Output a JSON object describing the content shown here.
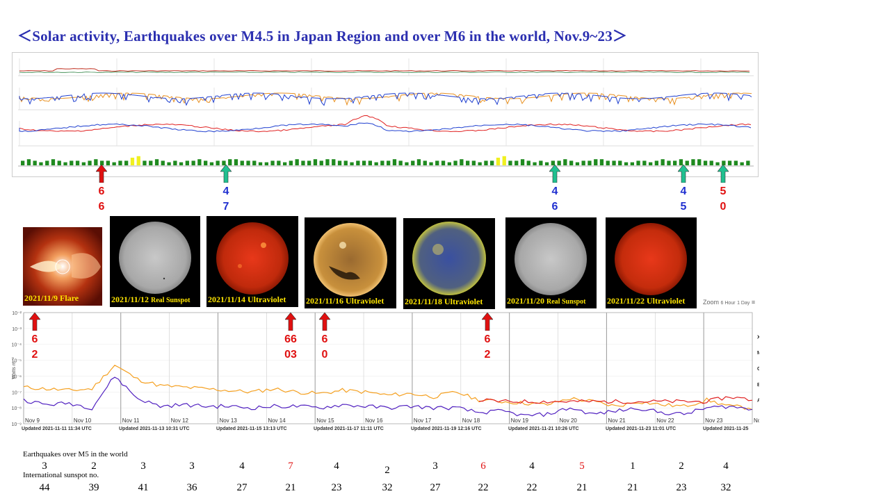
{
  "title": "＜Solar activity, Earthquakes over M4.5 in Japan Region and over M6 in the world,   Nov.9~23＞",
  "top_arrows": [
    {
      "x": 146,
      "color": "#e01010",
      "digits": [
        "6",
        "6"
      ],
      "label_color": "#e01010"
    },
    {
      "x": 325,
      "color": "#20c090",
      "digits": [
        "4",
        "7"
      ],
      "label_color": "#2030d0"
    },
    {
      "x": 798,
      "color": "#20c090",
      "digits": [
        "4",
        "6"
      ],
      "label_color": "#2030d0"
    },
    {
      "x": 983,
      "color": "#20c090",
      "digits": [
        "4",
        "5"
      ],
      "label_color": "#2030d0"
    },
    {
      "x": 1040,
      "color": "#20c090",
      "digits": [
        "5",
        "0"
      ],
      "label_color": "#e01010"
    }
  ],
  "tiles": [
    {
      "name": "flare",
      "caption": "2021/11/9 Flare",
      "small": ""
    },
    {
      "name": "sunspot-1112",
      "caption": "2021/11/12 ",
      "small": "Real Sunspot"
    },
    {
      "name": "uv-1114",
      "caption": "2021/11/14 Ultraviolet",
      "small": ""
    },
    {
      "name": "uv-1116",
      "caption": "2021/11/16 Ultraviolet",
      "small": ""
    },
    {
      "name": "uv-1118",
      "caption": "2021/11/18 Ultraviolet",
      "small": ""
    },
    {
      "name": "sunspot-1120",
      "caption": "2021/11/20 ",
      "small": "Real Sunspot"
    },
    {
      "name": "uv-1122",
      "caption": "2021/11/22 Ultraviolet",
      "small": ""
    }
  ],
  "xray_arrows": [
    {
      "x": 50,
      "digits": [
        "6",
        "2"
      ]
    },
    {
      "x": 418,
      "digits": [
        "66",
        "03"
      ]
    },
    {
      "x": 467,
      "digits": [
        "6",
        "0"
      ]
    },
    {
      "x": 701,
      "digits": [
        "6",
        "2"
      ]
    }
  ],
  "zoom": {
    "label": "Zoom",
    "opt1": "6 Hour",
    "opt2": "1 Day"
  },
  "chart_data": {
    "type": "line",
    "title": "",
    "ylabel": "Watts m⁻²",
    "ytick_labels": [
      "10⁻²",
      "10⁻³",
      "10⁻⁴",
      "10⁻⁵",
      "10⁻⁶",
      "10⁻⁷",
      "10⁻⁸",
      "10⁻⁹"
    ],
    "flare_classes": [
      "X",
      "M",
      "C",
      "B",
      "A"
    ],
    "x_labels": [
      "Nov 9",
      "Nov 10",
      "Nov 11",
      "Nov 12",
      "Nov 13",
      "Nov 14",
      "Nov 15",
      "Nov 16",
      "Nov 17",
      "Nov 18",
      "Nov 19",
      "Nov 20",
      "Nov 21",
      "Nov 22",
      "Nov 23",
      "Nov 24"
    ],
    "updated": [
      "Updated 2021-11-11 11:34 UTC",
      "Updated 2021-11-13 10:31 UTC",
      "Updated 2021-11-15 13:13 UTC",
      "Updated 2021-11-17 11:11 UTC",
      "Updated 2021-11-19 12:16 UTC",
      "Updated 2021-11-21 10:26 UTC",
      "Updated 2021-11-23 11:01 UTC",
      "Updated 2021-11-25"
    ],
    "series": [
      {
        "name": "",
        "color": "#f5a020",
        "log_values": [
          -6.7,
          -6.8,
          -6.9,
          -6.8,
          -5.3,
          -6.2,
          -6.6,
          -6.7,
          -6.8,
          -6.9,
          -7.0,
          -6.8,
          -7.0,
          -7.1,
          -6.9,
          -7.0,
          -7.2,
          -7.1,
          -7.3,
          -7.0,
          -7.5,
          -7.6,
          -7.7,
          -7.8,
          -7.4,
          -7.6,
          -7.9,
          -7.6,
          -7.8,
          -7.9,
          -7.5,
          -7.9,
          -8.0
        ]
      },
      {
        "name": "",
        "color": "#e02020",
        "log_values": [
          null,
          null,
          null,
          null,
          null,
          null,
          null,
          null,
          null,
          null,
          null,
          null,
          null,
          null,
          null,
          null,
          null,
          null,
          null,
          null,
          -7.5,
          -7.6,
          -7.6,
          -7.6,
          -7.6,
          -7.6,
          -7.6,
          -7.6,
          -7.6,
          -7.6,
          -7.6,
          -7.3,
          -7.5
        ]
      },
      {
        "name": "",
        "color": "#5020c0",
        "log_values": [
          -7.5,
          -7.8,
          -7.7,
          -8.0,
          -6.0,
          -7.4,
          -7.9,
          -7.8,
          -7.9,
          -7.9,
          -8.0,
          -7.9,
          -7.9,
          -8.0,
          -7.8,
          -7.9,
          -8.0,
          -7.9,
          -8.0,
          -8.0,
          -8.3,
          -8.2,
          -8.5,
          -8.4,
          -8.0,
          -8.4,
          -8.2,
          -8.0,
          -8.3,
          -8.4,
          -8.0,
          -7.9,
          -8.1
        ]
      }
    ],
    "kp_index": [
      3,
      4,
      3,
      2,
      3,
      4,
      3,
      2,
      3,
      3,
      2,
      3,
      4,
      3,
      3,
      2,
      3,
      3,
      5,
      6,
      3,
      3,
      4,
      3,
      2,
      3,
      2,
      3,
      3,
      4,
      3,
      2,
      3,
      3,
      4,
      4,
      3,
      3,
      3,
      2,
      2,
      3,
      3,
      2,
      3,
      4,
      3,
      3,
      4,
      3,
      4,
      4,
      3,
      3,
      2,
      3,
      3,
      3,
      2,
      3
    ]
  },
  "earthquakes": {
    "label": "Earthquakes over M5 in the world",
    "values": [
      {
        "v": "3",
        "color": "#000"
      },
      {
        "v": "2",
        "color": "#000"
      },
      {
        "v": "3",
        "color": "#000"
      },
      {
        "v": "3",
        "color": "#000"
      },
      {
        "v": "4",
        "color": "#000"
      },
      {
        "v": "7",
        "color": "#e01010"
      },
      {
        "v": "4",
        "color": "#000"
      },
      {
        "v": "2",
        "color": "#000"
      },
      {
        "v": "3",
        "color": "#000"
      },
      {
        "v": "6",
        "color": "#e01010"
      },
      {
        "v": "4",
        "color": "#000"
      },
      {
        "v": "5",
        "color": "#e01010"
      },
      {
        "v": "1",
        "color": "#000"
      },
      {
        "v": "2",
        "color": "#000"
      },
      {
        "v": "4",
        "color": "#000"
      }
    ]
  },
  "sunspots": {
    "label": "International sunspot no.",
    "values": [
      "44",
      "39",
      "41",
      "36",
      "27",
      "21",
      "23",
      "32",
      "27",
      "22",
      "22",
      "21",
      "21",
      "23",
      "32"
    ]
  }
}
